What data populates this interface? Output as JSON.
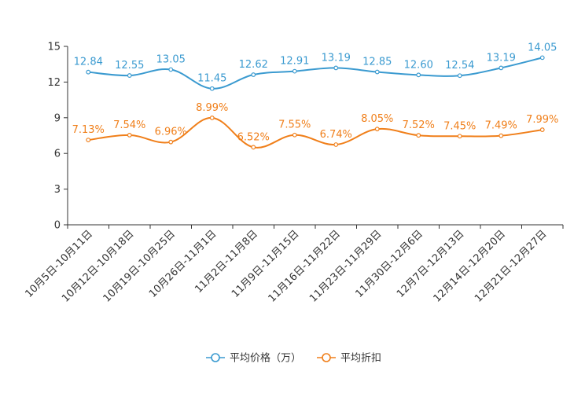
{
  "chart_data": {
    "type": "line",
    "title": "",
    "xlabel": "",
    "ylabel": "",
    "ylim": [
      0,
      15
    ],
    "yticks": [
      0,
      3,
      6,
      9,
      12,
      15
    ],
    "grid": false,
    "legend_position": "bottom-center",
    "categories": [
      "10月5日-10月11日",
      "10月12日-10月18日",
      "10月19日-10月25日",
      "10月26日-11月1日",
      "11月2日-11月8日",
      "11月9日-11月15日",
      "11月16日-11月22日",
      "11月23日-11月29日",
      "11月30日-12月6日",
      "12月7日-12月13日",
      "12月14日-12月20日",
      "12月21日-12月27日"
    ],
    "series": [
      {
        "name": "平均价格（万）",
        "color": "#3a9ad0",
        "values": [
          12.84,
          12.55,
          13.05,
          11.45,
          12.62,
          12.91,
          13.19,
          12.85,
          12.6,
          12.54,
          13.19,
          14.05
        ],
        "labels": [
          "12.84",
          "12.55",
          "13.05",
          "11.45",
          "12.62",
          "12.91",
          "13.19",
          "12.85",
          "12.60",
          "12.54",
          "13.19",
          "14.05"
        ]
      },
      {
        "name": "平均折扣",
        "color": "#f07f1a",
        "values": [
          7.13,
          7.54,
          6.96,
          8.99,
          6.52,
          7.55,
          6.74,
          8.05,
          7.52,
          7.45,
          7.49,
          7.99
        ],
        "labels": [
          "7.13%",
          "7.54%",
          "6.96%",
          "8.99%",
          "6.52%",
          "7.55%",
          "6.74%",
          "8.05%",
          "7.52%",
          "7.45%",
          "7.49%",
          "7.99%"
        ]
      }
    ]
  }
}
